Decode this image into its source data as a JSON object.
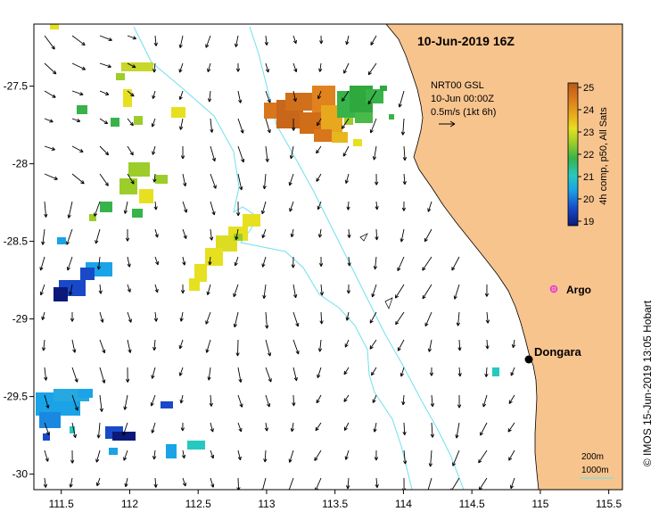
{
  "title": "10-Jun-2019 16Z",
  "info": {
    "line1": "NRT00 GSL",
    "line2": "10-Jun 00:00Z",
    "line3": "0.5m/s (1kt 6h)"
  },
  "axes": {
    "x_ticks": [
      "111.5",
      "112",
      "112.5",
      "113",
      "113.5",
      "114",
      "114.5",
      "115",
      "115.5"
    ],
    "y_ticks": [
      "-27.5",
      "-28",
      "-28.5",
      "-29",
      "-29.5",
      "-30"
    ],
    "lon_range": [
      111.3,
      115.6
    ],
    "lat_range": [
      -30.1,
      -27.1
    ]
  },
  "colorbar": {
    "label": "4h comp, p50, All Sats",
    "ticks": [
      "25",
      "24",
      "23",
      "22",
      "21",
      "20",
      "19"
    ],
    "range": [
      18.8,
      25.2
    ],
    "colors": [
      "#0b1a78",
      "#1849c8",
      "#1aa3e6",
      "#26c9c0",
      "#37b34a",
      "#9ccd2a",
      "#e6e020",
      "#e8a81e",
      "#d9761c",
      "#b85a14"
    ]
  },
  "places": {
    "dongara": {
      "label": "Dongara",
      "lon": 114.93,
      "lat": -29.26
    },
    "argo": {
      "label": "Argo",
      "lon": 115.1,
      "lat": -28.82
    }
  },
  "scale": {
    "depth1": "200m",
    "depth2": "1000m"
  },
  "credit": "© IMOS 15-Jun-2019 13:05 Hobart",
  "colors": {
    "land": "#f8c48e",
    "isobath": "#6fe0ee",
    "argo": "#e23bd6",
    "arrow": "#000000"
  }
}
